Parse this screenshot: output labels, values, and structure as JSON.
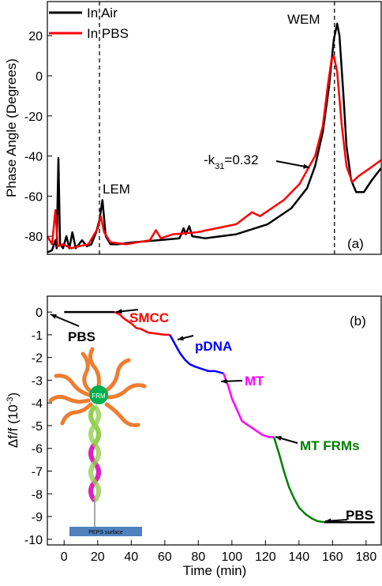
{
  "chart_data": [
    {
      "type": "line",
      "ylabel": "Phase Angle (Degrees)",
      "xlim": [
        0,
        100
      ],
      "ylim": [
        -89,
        37
      ],
      "yticks": [
        -80,
        -60,
        -40,
        -20,
        0,
        20
      ],
      "legend": "top-left",
      "vlines": [
        15.6,
        86
      ],
      "annotations": [
        "WEM",
        "LEM",
        "(a)"
      ],
      "k_label": {
        "pre": "-k",
        "sub": "31",
        "post": "=0.32"
      },
      "series": [
        {
          "name": "In Air",
          "color": "#000000",
          "x": [
            0,
            1.4,
            2.4,
            2.8,
            3.3,
            3.8,
            4.7,
            5.7,
            6.6,
            7.5,
            8.5,
            10.4,
            11.8,
            13.2,
            14.6,
            15.6,
            16.5,
            17.5,
            18.9,
            21.2,
            25.9,
            33.0,
            39.6,
            40.8,
            41.5,
            42.5,
            43.4,
            47.2,
            56.6,
            66.0,
            73.1,
            77.8,
            80.2,
            82.5,
            84.4,
            85.8,
            86.8,
            87.5,
            88.7,
            89.6,
            91.0,
            92.5,
            94.8,
            97.2,
            100
          ],
          "values": [
            -88,
            -87,
            -82,
            -86,
            -41,
            -84,
            -86,
            -80,
            -86,
            -78,
            -86,
            -82,
            -85,
            -84,
            -78,
            -72,
            -62,
            -80,
            -84,
            -84,
            -83,
            -82,
            -81,
            -76,
            -79,
            -75,
            -80,
            -81,
            -79,
            -74,
            -66,
            -56,
            -45,
            -28,
            -5,
            18,
            26,
            20,
            -10,
            -35,
            -52,
            -58,
            -58,
            -52,
            -46
          ]
        },
        {
          "name": "In PBS",
          "color": "#ff0000",
          "x": [
            0,
            1.4,
            2.4,
            3.1,
            4.7,
            7.1,
            9.4,
            12.3,
            13.7,
            15.1,
            16.0,
            17.0,
            18.9,
            23.6,
            30.7,
            32.5,
            34.0,
            37.7,
            44.8,
            56.6,
            61.3,
            63.7,
            70.8,
            75.5,
            80.2,
            82.5,
            84.0,
            85.1,
            85.8,
            86.8,
            88.2,
            89.6,
            91.3,
            93.2,
            96.7,
            100
          ],
          "values": [
            -80,
            -84,
            -67,
            -85,
            -84,
            -86,
            -85,
            -84,
            -80,
            -76,
            -70,
            -78,
            -83,
            -84,
            -82,
            -77,
            -81,
            -79,
            -78,
            -74,
            -68,
            -70,
            -62,
            -54,
            -40,
            -25,
            -5,
            8,
            10,
            2,
            -25,
            -45,
            -53,
            -50,
            -46,
            -42
          ]
        }
      ]
    },
    {
      "type": "line",
      "xlabel": "Time (min)",
      "ylabel": {
        "pre": "Δf/f (10",
        "sup": "-3",
        "post": ")"
      },
      "xlim": [
        -10,
        189
      ],
      "ylim": [
        -10.25,
        0.7
      ],
      "xticks": [
        0,
        20,
        40,
        60,
        80,
        100,
        120,
        140,
        160,
        180
      ],
      "yticks": [
        0,
        -1,
        -2,
        -3,
        -4,
        -5,
        -6,
        -7,
        -8,
        -9,
        -10
      ],
      "annotations": [
        "(b)"
      ],
      "diagram": {
        "labels": [
          "FRM",
          "PEPS surface"
        ]
      },
      "series": [
        {
          "name": "PBS",
          "color": "#000000",
          "x": [
            0,
            10,
            20,
            30
          ],
          "values": [
            0,
            0,
            0,
            0
          ]
        },
        {
          "name": "SMCC",
          "color": "#ff0000",
          "x": [
            30,
            33,
            36,
            40,
            43,
            46,
            50,
            55,
            60,
            63
          ],
          "values": [
            0,
            -0.1,
            -0.3,
            -0.5,
            -0.7,
            -0.75,
            -0.9,
            -0.95,
            -1.0,
            -1.0
          ]
        },
        {
          "name": "pDNA",
          "color": "#0000ff",
          "x": [
            63,
            66,
            69,
            72,
            75,
            78,
            82,
            86,
            90,
            95
          ],
          "values": [
            -1.0,
            -1.4,
            -1.8,
            -2.1,
            -2.3,
            -2.4,
            -2.5,
            -2.6,
            -2.6,
            -2.7
          ]
        },
        {
          "name": "MT",
          "color": "#ff00ff",
          "x": [
            95,
            98,
            100,
            103,
            106,
            110,
            114,
            118,
            122,
            125
          ],
          "values": [
            -2.7,
            -3.3,
            -3.8,
            -4.3,
            -4.8,
            -5.0,
            -5.2,
            -5.4,
            -5.5,
            -5.5
          ]
        },
        {
          "name": "MT FRMs",
          "color": "#008000",
          "x": [
            125,
            128,
            131,
            134,
            137,
            140,
            144,
            148,
            151,
            155
          ],
          "values": [
            -5.5,
            -6.2,
            -7.0,
            -7.7,
            -8.2,
            -8.6,
            -8.9,
            -9.1,
            -9.2,
            -9.25
          ]
        },
        {
          "name": "PBS",
          "color": "#000000",
          "x": [
            155,
            165,
            175,
            185
          ],
          "values": [
            -9.25,
            -9.25,
            -9.25,
            -9.25
          ]
        }
      ]
    }
  ]
}
